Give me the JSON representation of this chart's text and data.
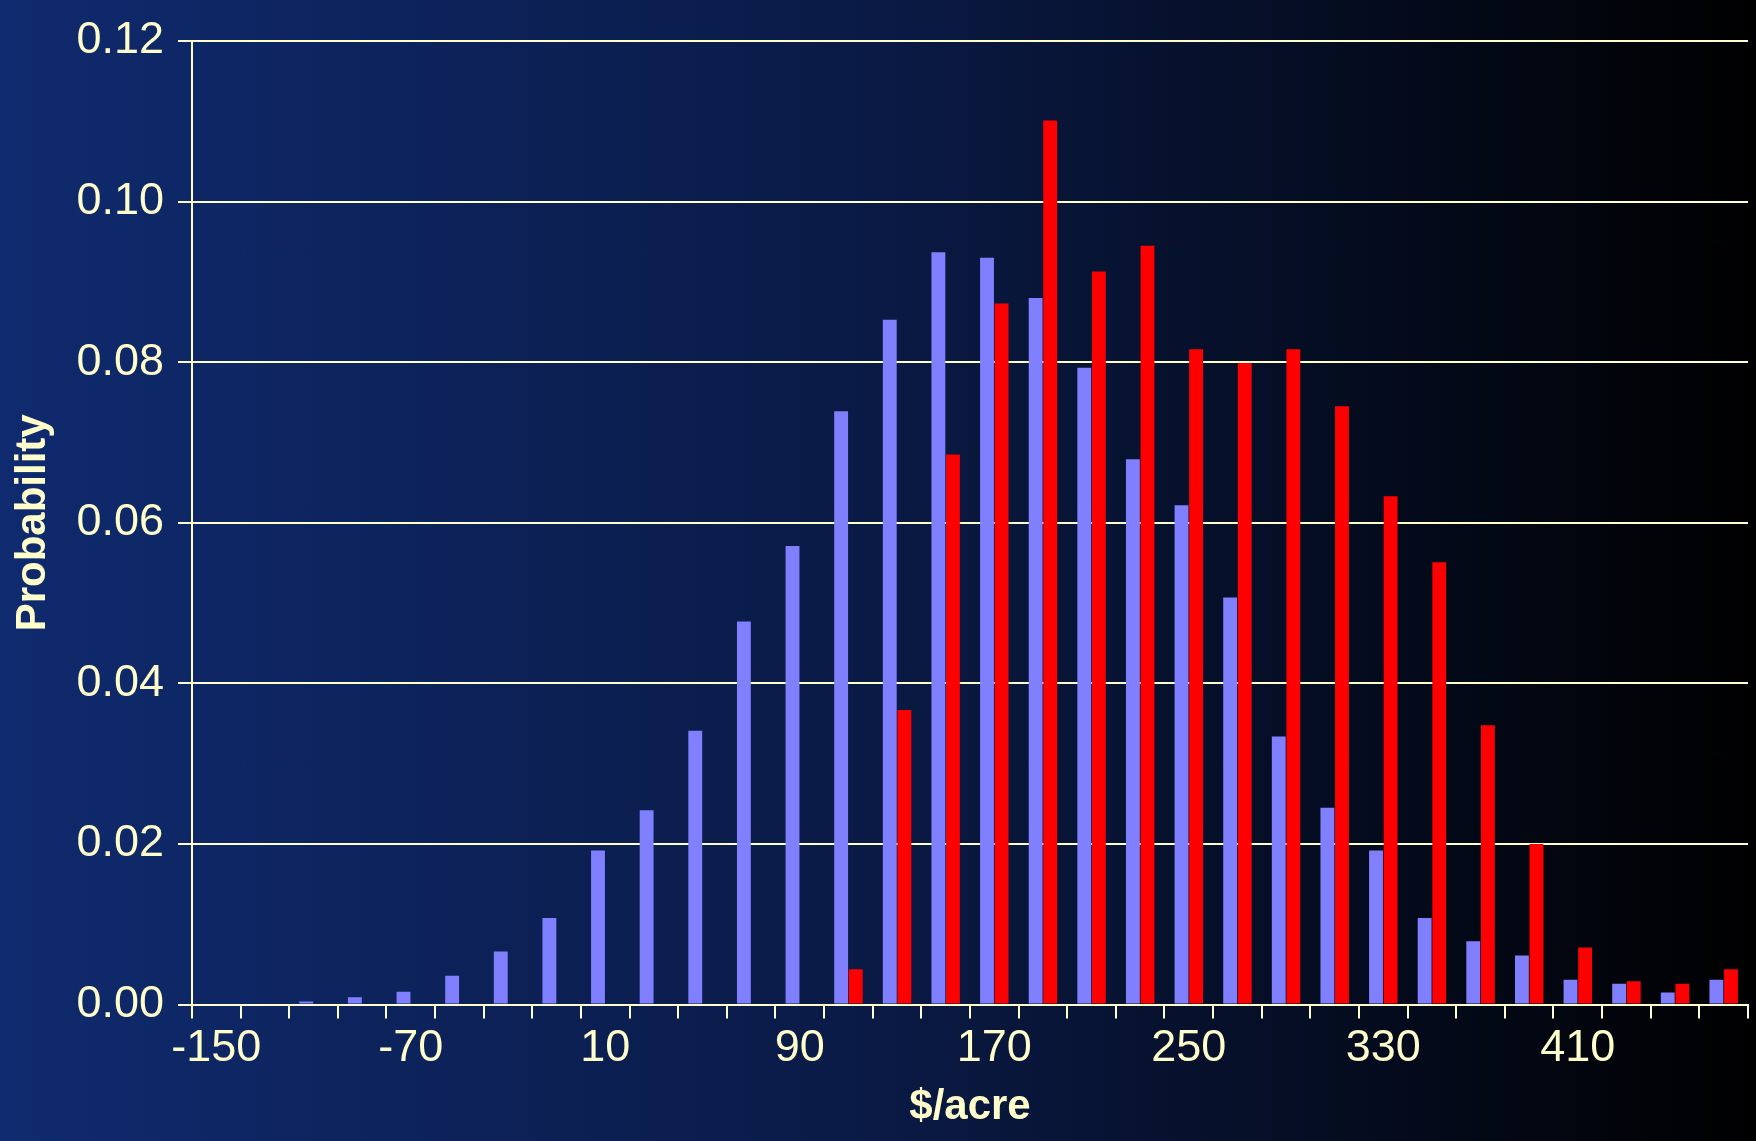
{
  "chart_data": {
    "type": "bar",
    "xlabel": "$/acre",
    "ylabel": "Probability",
    "categories": [
      "-150",
      null,
      null,
      null,
      "-70",
      null,
      null,
      null,
      "10",
      null,
      null,
      null,
      "90",
      null,
      null,
      null,
      "170",
      null,
      null,
      null,
      "250",
      null,
      null,
      null,
      "330",
      null,
      null,
      null,
      "410",
      null,
      null,
      null
    ],
    "series": [
      {
        "color": "#8080ff",
        "values": [
          0,
          0,
          0.0004,
          0.0009,
          0.0016,
          0.0036,
          0.0066,
          0.0108,
          0.0192,
          0.0242,
          0.0341,
          0.0477,
          0.0571,
          0.0739,
          0.0853,
          0.0937,
          0.093,
          0.088,
          0.0793,
          0.0679,
          0.0622,
          0.0507,
          0.0334,
          0.0245,
          0.0192,
          0.0108,
          0.0079,
          0.0061,
          0.0031,
          0.0026,
          0.0015,
          0.0031
        ]
      },
      {
        "color": "#ff0000",
        "values": [
          0,
          0,
          0,
          0,
          0,
          0,
          0,
          0,
          0,
          0,
          0,
          0,
          0,
          0.0044,
          0.0367,
          0.0685,
          0.0873,
          0.1101,
          0.0913,
          0.0945,
          0.0816,
          0.0799,
          0.0816,
          0.0745,
          0.0633,
          0.0551,
          0.0348,
          0.02,
          0.0071,
          0.0029,
          0.0026,
          0.0044
        ]
      }
    ],
    "ylim": [
      0,
      0.12
    ],
    "yticks": [
      {
        "value": 0,
        "label": "0.00"
      },
      {
        "value": 0.02,
        "label": "0.02"
      },
      {
        "value": 0.04,
        "label": "0.04"
      },
      {
        "value": 0.06,
        "label": "0.06"
      },
      {
        "value": 0.08,
        "label": "0.08"
      },
      {
        "value": 0.1,
        "label": "0.10"
      },
      {
        "value": 0.12,
        "label": "0.12"
      }
    ],
    "grid": "y",
    "legend": false
  }
}
